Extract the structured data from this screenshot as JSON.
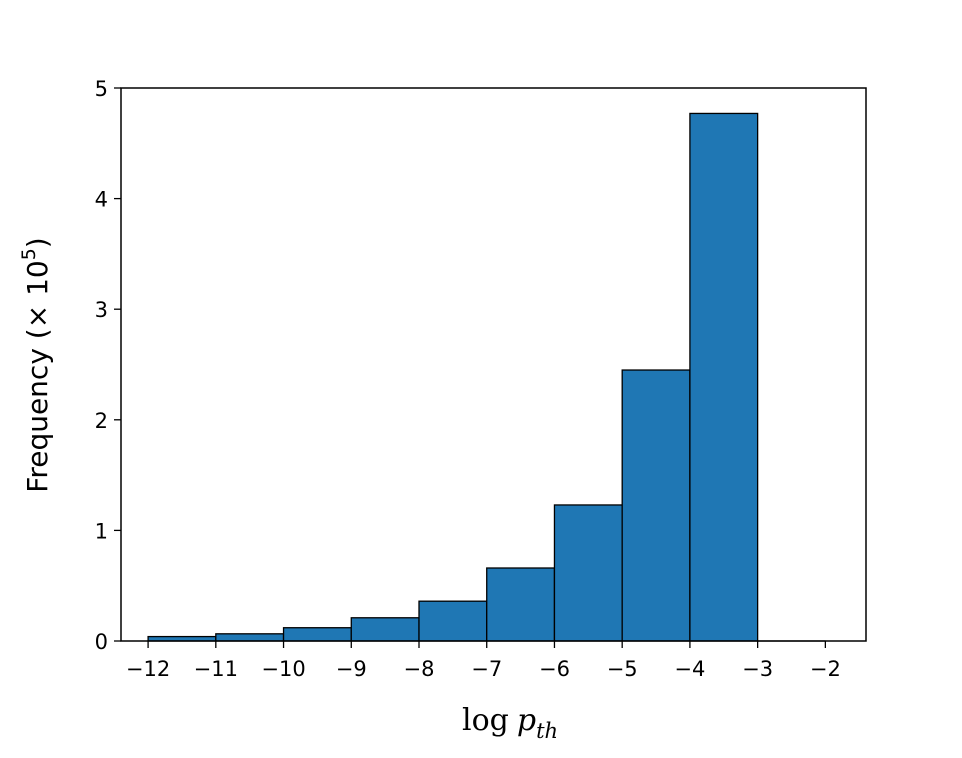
{
  "chart_data": {
    "type": "bar",
    "histogram": true,
    "bins": [
      {
        "start": -12,
        "end": -11,
        "value": 0.04
      },
      {
        "start": -11,
        "end": -10,
        "value": 0.065
      },
      {
        "start": -10,
        "end": -9,
        "value": 0.12
      },
      {
        "start": -9,
        "end": -8,
        "value": 0.21
      },
      {
        "start": -8,
        "end": -7,
        "value": 0.36
      },
      {
        "start": -7,
        "end": -6,
        "value": 0.66
      },
      {
        "start": -6,
        "end": -5,
        "value": 1.23
      },
      {
        "start": -5,
        "end": -4,
        "value": 2.45
      },
      {
        "start": -4,
        "end": -3,
        "value": 4.77
      }
    ],
    "xlim": [
      -12.4,
      -1.4
    ],
    "ylim": [
      0,
      5
    ],
    "x_ticks": [
      -12,
      -11,
      -10,
      -9,
      -8,
      -7,
      -6,
      -5,
      -4,
      -3,
      -2
    ],
    "x_tick_labels": [
      "−12",
      "−11",
      "−10",
      "−9",
      "−8",
      "−7",
      "−6",
      "−5",
      "−4",
      "−3",
      "−2"
    ],
    "y_ticks": [
      0,
      1,
      2,
      3,
      4,
      5
    ],
    "y_tick_labels": [
      "0",
      "1",
      "2",
      "3",
      "4",
      "5"
    ],
    "xlabel": {
      "prefix": "log",
      "symbol": "p",
      "subscript": "th"
    },
    "ylabel": {
      "text": "Frequency (× 10",
      "superscript": "5",
      "suffix": ")"
    },
    "grid": false,
    "colors": {
      "bar_fill": "#1f77b4",
      "bar_edge": "#000000",
      "axes": "#000000"
    }
  }
}
